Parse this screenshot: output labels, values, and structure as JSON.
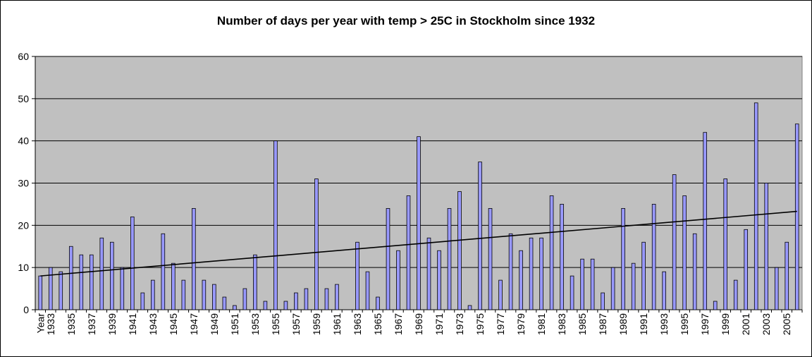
{
  "chart_data": {
    "type": "bar",
    "title": "Number of days per year with temp > 25C in Stockholm since 1932",
    "xlabel": "",
    "ylabel": "",
    "ylim": [
      0,
      60
    ],
    "yticks": [
      0,
      10,
      20,
      30,
      40,
      50,
      60
    ],
    "grid": true,
    "plot_background": "#c0c0c0",
    "bar_color": "#9999ff",
    "trendline": {
      "type": "linear",
      "start": 8,
      "end": 23.3
    },
    "first_category_label": "Year",
    "categories": [
      "Year",
      "1933",
      "1934",
      "1935",
      "1936",
      "1937",
      "1938",
      "1939",
      "1940",
      "1941",
      "1942",
      "1943",
      "1944",
      "1945",
      "1946",
      "1947",
      "1948",
      "1949",
      "1950",
      "1951",
      "1952",
      "1953",
      "1954",
      "1955",
      "1956",
      "1957",
      "1958",
      "1959",
      "1960",
      "1961",
      "1962",
      "1963",
      "1964",
      "1965",
      "1966",
      "1967",
      "1968",
      "1969",
      "1970",
      "1971",
      "1972",
      "1973",
      "1974",
      "1975",
      "1976",
      "1977",
      "1978",
      "1979",
      "1980",
      "1981",
      "1982",
      "1983",
      "1984",
      "1985",
      "1986",
      "1987",
      "1988",
      "1989",
      "1990",
      "1991",
      "1992",
      "1993",
      "1994",
      "1995",
      "1996",
      "1997",
      "1998",
      "1999",
      "2000",
      "2001",
      "2002",
      "2003",
      "2004",
      "2005",
      "2006"
    ],
    "shown_tick_labels": [
      "Year",
      "1933",
      "1935",
      "1937",
      "1939",
      "1941",
      "1943",
      "1945",
      "1947",
      "1949",
      "1951",
      "1953",
      "1955",
      "1957",
      "1959",
      "1961",
      "1963",
      "1965",
      "1967",
      "1969",
      "1971",
      "1973",
      "1975",
      "1977",
      "1979",
      "1981",
      "1983",
      "1985",
      "1987",
      "1989",
      "1991",
      "1993",
      "1995",
      "1997",
      "1999",
      "2001",
      "2003",
      "2005"
    ],
    "values": [
      8,
      10,
      9,
      15,
      13,
      13,
      17,
      16,
      10,
      22,
      4,
      7,
      18,
      11,
      7,
      24,
      7,
      6,
      3,
      1,
      5,
      13,
      2,
      40,
      2,
      4,
      5,
      31,
      5,
      6,
      0,
      16,
      9,
      3,
      24,
      14,
      27,
      41,
      17,
      14,
      24,
      28,
      1,
      35,
      24,
      7,
      18,
      14,
      17,
      17,
      27,
      25,
      8,
      12,
      12,
      4,
      10,
      24,
      11,
      16,
      25,
      9,
      32,
      27,
      18,
      42,
      2,
      31,
      7,
      19,
      49,
      30,
      10,
      16,
      44
    ]
  }
}
